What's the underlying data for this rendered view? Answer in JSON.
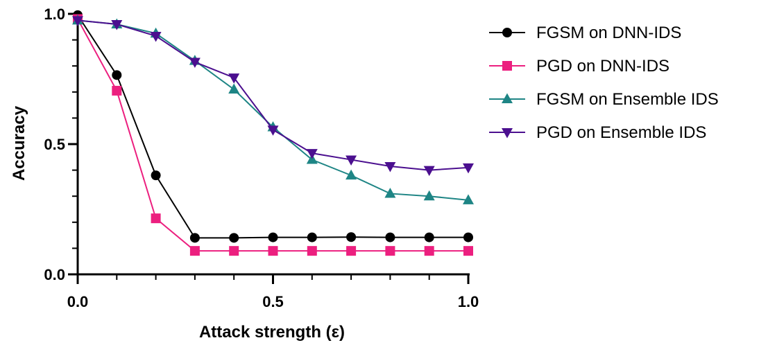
{
  "chart_data": {
    "type": "line",
    "title": "",
    "xlabel": "Attack strength (ε)",
    "ylabel": "Accuracy",
    "xlim": [
      0,
      1
    ],
    "ylim": [
      0,
      1
    ],
    "x_ticks": [
      0.0,
      0.5,
      1.0
    ],
    "x_tick_labels": [
      "0.0",
      "0.5",
      "1.0"
    ],
    "y_ticks": [
      0.0,
      0.5,
      1.0
    ],
    "y_tick_labels": [
      "0.0",
      "0.5",
      "1.0"
    ],
    "x_minor_tick_step": 0.1,
    "y_minor_tick_step": 0.1,
    "grid": false,
    "legend_position": "right",
    "x": [
      0.0,
      0.1,
      0.2,
      0.3,
      0.4,
      0.5,
      0.6,
      0.7,
      0.8,
      0.9,
      1.0
    ],
    "series": [
      {
        "name": "FGSM on DNN-IDS",
        "color": "#000000",
        "marker": "circle",
        "values": [
          0.995,
          0.765,
          0.38,
          0.14,
          0.14,
          0.142,
          0.142,
          0.143,
          0.142,
          0.142,
          0.142
        ]
      },
      {
        "name": "PGD on DNN-IDS",
        "color": "#ec1f7f",
        "marker": "square",
        "values": [
          0.98,
          0.705,
          0.215,
          0.09,
          0.09,
          0.09,
          0.09,
          0.09,
          0.09,
          0.09,
          0.09
        ]
      },
      {
        "name": "FGSM on Ensemble IDS",
        "color": "#1e8585",
        "marker": "triangle-up",
        "values": [
          0.975,
          0.96,
          0.925,
          0.82,
          0.71,
          0.565,
          0.44,
          0.38,
          0.31,
          0.3,
          0.285
        ]
      },
      {
        "name": "PGD on Ensemble IDS",
        "color": "#4b0f8f",
        "marker": "triangle-down",
        "values": [
          0.975,
          0.96,
          0.915,
          0.815,
          0.755,
          0.555,
          0.465,
          0.44,
          0.415,
          0.4,
          0.41
        ]
      }
    ]
  }
}
